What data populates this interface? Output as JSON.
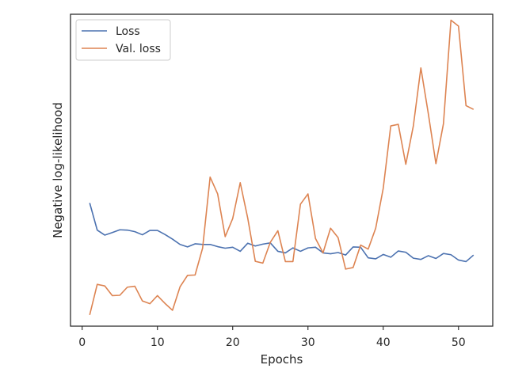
{
  "chart_data": {
    "type": "line",
    "xlabel": "Epochs",
    "ylabel": "Negative log-likelihood",
    "xlim": [
      -1.55,
      54.55
    ],
    "ylim": [
      0,
      1
    ],
    "xticks": [
      0,
      10,
      20,
      30,
      40,
      50
    ],
    "grid": false,
    "legend": "top-left",
    "colors": {
      "loss": "#4c72b0",
      "val_loss": "#dd8452",
      "frame": "#262626"
    },
    "series": [
      {
        "name": "Loss",
        "x": [
          1,
          2,
          3,
          4,
          5,
          6,
          7,
          8,
          9,
          10,
          11,
          12,
          13,
          14,
          15,
          16,
          17,
          18,
          19,
          20,
          21,
          22,
          23,
          24,
          25,
          26,
          27,
          28,
          29,
          30,
          31,
          32,
          33,
          34,
          35,
          36,
          37,
          38,
          39,
          40,
          41,
          42,
          43,
          44,
          45,
          46,
          47,
          48,
          49,
          50,
          51,
          52
        ],
        "y": [
          0.395,
          0.308,
          0.292,
          0.3,
          0.309,
          0.308,
          0.303,
          0.293,
          0.307,
          0.307,
          0.294,
          0.279,
          0.262,
          0.254,
          0.264,
          0.262,
          0.262,
          0.255,
          0.25,
          0.253,
          0.24,
          0.266,
          0.257,
          0.263,
          0.267,
          0.24,
          0.235,
          0.251,
          0.24,
          0.251,
          0.253,
          0.235,
          0.232,
          0.236,
          0.228,
          0.254,
          0.253,
          0.219,
          0.216,
          0.23,
          0.221,
          0.241,
          0.237,
          0.218,
          0.214,
          0.226,
          0.217,
          0.233,
          0.229,
          0.212,
          0.207,
          0.228
        ]
      },
      {
        "name": "Val. loss",
        "x": [
          1,
          2,
          3,
          4,
          5,
          6,
          7,
          8,
          9,
          10,
          11,
          12,
          13,
          14,
          15,
          16,
          17,
          18,
          19,
          20,
          21,
          22,
          23,
          24,
          25,
          26,
          27,
          28,
          29,
          30,
          31,
          32,
          33,
          34,
          35,
          36,
          37,
          38,
          39,
          40,
          41,
          42,
          43,
          44,
          45,
          46,
          47,
          48,
          49,
          50,
          51,
          52
        ],
        "y": [
          0.036,
          0.134,
          0.129,
          0.098,
          0.099,
          0.125,
          0.128,
          0.081,
          0.072,
          0.098,
          0.073,
          0.051,
          0.126,
          0.163,
          0.164,
          0.25,
          0.478,
          0.424,
          0.287,
          0.345,
          0.46,
          0.346,
          0.208,
          0.202,
          0.269,
          0.306,
          0.207,
          0.207,
          0.391,
          0.424,
          0.281,
          0.235,
          0.314,
          0.284,
          0.183,
          0.188,
          0.26,
          0.247,
          0.314,
          0.442,
          0.642,
          0.647,
          0.519,
          0.642,
          0.828,
          0.68,
          0.521,
          0.649,
          0.981,
          0.962,
          0.707,
          0.695
        ]
      }
    ]
  }
}
